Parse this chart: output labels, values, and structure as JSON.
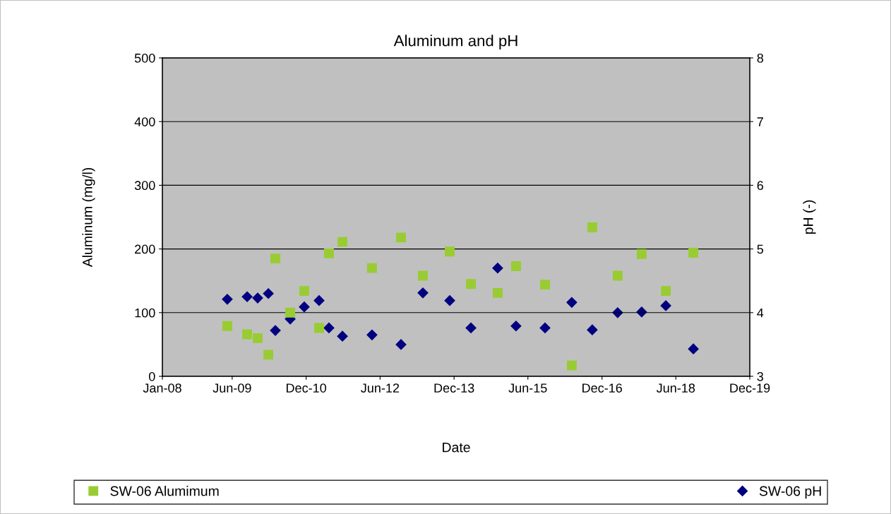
{
  "chart_data": {
    "type": "scatter",
    "title": "Aluminum and pH",
    "xlabel": "Date",
    "ylabel": "Aluminum (mg/l)",
    "y2label": "pH (-)",
    "x": [
      "2009-04-26",
      "2009-09-20",
      "2009-12-07",
      "2010-02-24",
      "2010-04-17",
      "2010-08-05",
      "2010-11-17",
      "2011-03-07",
      "2011-05-19",
      "2011-08-27",
      "2012-04-02",
      "2012-11-03",
      "2013-04-14",
      "2013-10-30",
      "2014-04-05",
      "2014-10-20",
      "2015-03-05",
      "2015-10-06",
      "2016-04-21",
      "2016-09-20",
      "2017-03-27",
      "2017-09-21",
      "2018-03-19",
      "2018-10-09"
    ],
    "series": [
      {
        "name": "SW-06 Alumimum",
        "color": "#99cc33",
        "marker": "square",
        "values": [
          79,
          66,
          60,
          34,
          185,
          100,
          134,
          76,
          193,
          211,
          170,
          218,
          158,
          196,
          145,
          131,
          173,
          144,
          17,
          234,
          158,
          192,
          134,
          194
        ]
      },
      {
        "name": "SW-06 pH",
        "color": "#000080",
        "marker": "diamond",
        "axis": "y2",
        "values": [
          4.21,
          4.25,
          4.23,
          4.3,
          3.72,
          3.9,
          4.09,
          4.19,
          3.76,
          3.63,
          3.65,
          3.5,
          4.31,
          4.19,
          3.76,
          4.7,
          3.79,
          3.76,
          4.16,
          3.73,
          4.0,
          4.01,
          4.11,
          3.43
        ]
      }
    ],
    "xlim": [
      "2008-01-01",
      "2019-12-01"
    ],
    "xticks": [
      {
        "value": "2008-01-01",
        "label": "Jan-08"
      },
      {
        "value": "2009-06-01",
        "label": "Jun-09"
      },
      {
        "value": "2010-12-01",
        "label": "Dec-10"
      },
      {
        "value": "2012-06-01",
        "label": "Jun-12"
      },
      {
        "value": "2013-12-01",
        "label": "Dec-13"
      },
      {
        "value": "2015-06-01",
        "label": "Jun-15"
      },
      {
        "value": "2016-12-01",
        "label": "Dec-16"
      },
      {
        "value": "2018-06-01",
        "label": "Jun-18"
      },
      {
        "value": "2019-12-01",
        "label": "Dec-19"
      }
    ],
    "ylim": [
      0,
      500
    ],
    "yticks": [
      0,
      100,
      200,
      300,
      400,
      500
    ],
    "y2lim": [
      3,
      8
    ],
    "y2ticks": [
      3,
      4,
      5,
      6,
      7,
      8
    ],
    "grid": "y",
    "legend": "bottom"
  }
}
